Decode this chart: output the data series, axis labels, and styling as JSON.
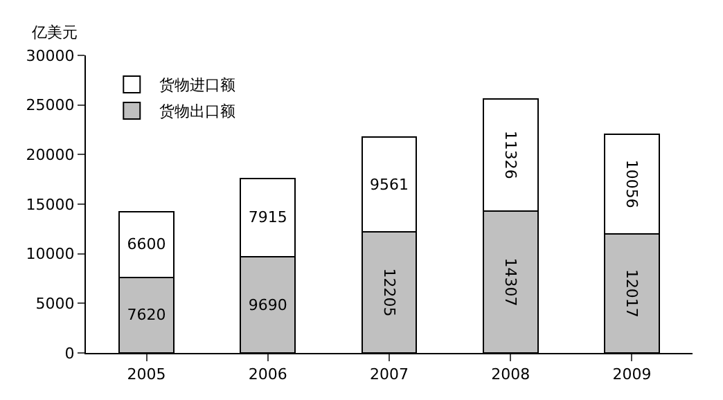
{
  "chart_data": {
    "type": "bar",
    "stacked": true,
    "ylabel": "亿美元",
    "categories": [
      "2005",
      "2006",
      "2007",
      "2008",
      "2009"
    ],
    "series": [
      {
        "name": "货物出口额",
        "color": "#c0c0c0",
        "values": [
          7620,
          9690,
          12205,
          14307,
          12017
        ]
      },
      {
        "name": "货物进口额",
        "color": "#ffffff",
        "values": [
          6600,
          7915,
          9561,
          11326,
          10056
        ]
      }
    ],
    "ylim": [
      0,
      30000
    ],
    "yticks": [
      0,
      5000,
      10000,
      15000,
      20000,
      25000,
      30000
    ],
    "grid": false,
    "legend": "top left",
    "data_labels": true
  }
}
